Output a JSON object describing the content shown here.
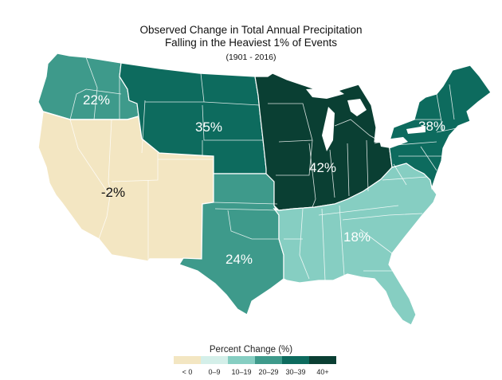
{
  "title": {
    "line1": "Observed Change in Total Annual Precipitation",
    "line2": "Falling in the Heaviest 1% of Events",
    "subtitle": "(1901 - 2016)"
  },
  "regions": [
    {
      "id": "northwest",
      "label": "22%",
      "color": "#3e9a8b"
    },
    {
      "id": "southwest",
      "label": "-2%",
      "color": "#f3e6c2"
    },
    {
      "id": "great-plains-north",
      "label": "35%",
      "color": "#0d6b5e"
    },
    {
      "id": "great-plains-south",
      "label": "24%",
      "color": "#3e9a8b"
    },
    {
      "id": "midwest",
      "label": "42%",
      "color": "#0a3f33"
    },
    {
      "id": "southeast",
      "label": "18%",
      "color": "#86cec2"
    },
    {
      "id": "northeast",
      "label": "38%",
      "color": "#0d6b5e"
    }
  ],
  "legend": {
    "title": "Percent Change (%)",
    "items": [
      {
        "label": "< 0",
        "color": "#f3e6c2"
      },
      {
        "label": "0–9",
        "color": "#d4efe9"
      },
      {
        "label": "10–19",
        "color": "#86cec2"
      },
      {
        "label": "20–29",
        "color": "#3e9a8b"
      },
      {
        "label": "30–39",
        "color": "#0d6b5e"
      },
      {
        "label": "40+",
        "color": "#0a3f33"
      }
    ]
  }
}
